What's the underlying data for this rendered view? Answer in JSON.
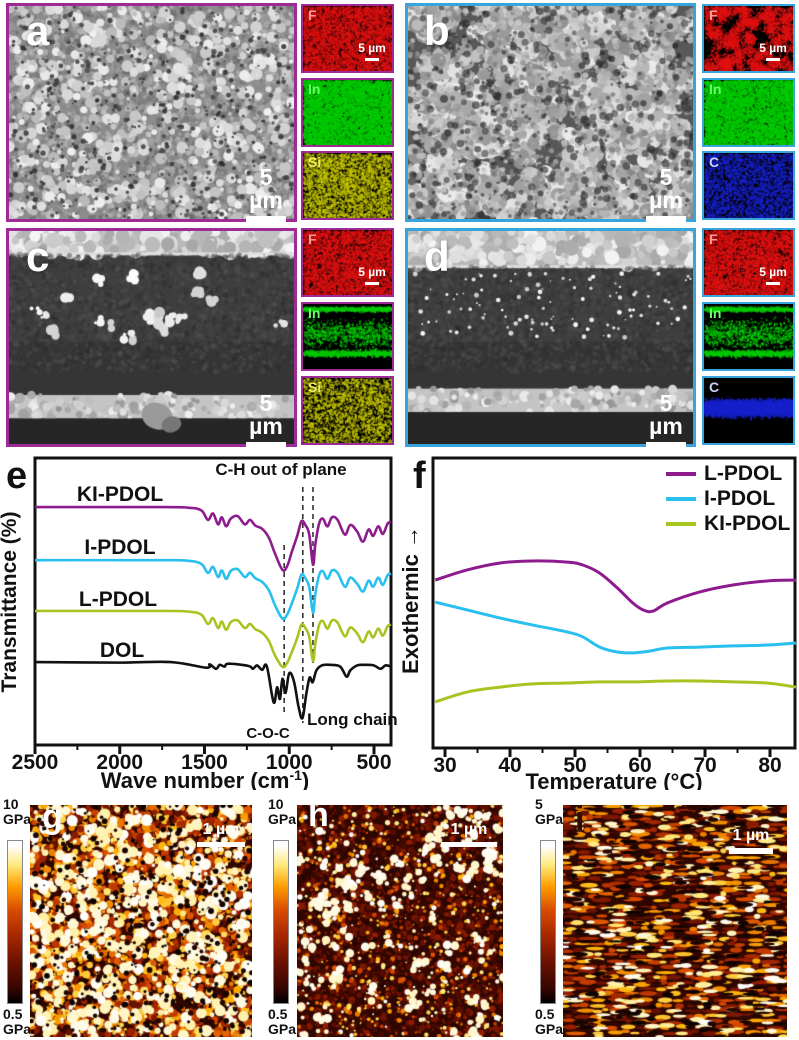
{
  "colors": {
    "purple_border": "#9e2a96",
    "blue_border": "#39a4dc",
    "curve_purple": "#8e1b8e",
    "curve_cyan": "#29bfee",
    "curve_green": "#a6c520",
    "curve_black": "#111111"
  },
  "panels": {
    "a": {
      "label": "a",
      "scale": "5 µm",
      "type": "sem-surface",
      "eds": [
        {
          "element": "F",
          "color": "#e01212",
          "label_color": "#ff9a9a",
          "scale": "5 µm"
        },
        {
          "element": "In",
          "color": "#00bb00",
          "label_color": "#66ff66"
        },
        {
          "element": "Si",
          "color": "#c6c600",
          "label_color": "#eeee66"
        }
      ]
    },
    "b": {
      "label": "b",
      "scale": "5 µm",
      "type": "sem-particles",
      "eds": [
        {
          "element": "F",
          "color": "#e01212",
          "label_color": "#ff9a9a",
          "scale": "5 µm"
        },
        {
          "element": "In",
          "color": "#00bb00",
          "label_color": "#66ff66"
        },
        {
          "element": "C",
          "color": "#1822cc",
          "label_color": "#c8d2ff"
        }
      ]
    },
    "c": {
      "label": "c",
      "scale": "5 µm",
      "type": "sem-cross",
      "eds": [
        {
          "element": "F",
          "color": "#e01212",
          "label_color": "#ff9a9a",
          "scale": "5 µm"
        },
        {
          "element": "In",
          "color": "#00bb00",
          "label_color": "#66ff66",
          "banded": true
        },
        {
          "element": "Si",
          "color": "#c6c600",
          "label_color": "#eeee66"
        }
      ]
    },
    "d": {
      "label": "d",
      "scale": "5 µm",
      "type": "sem-cross",
      "eds": [
        {
          "element": "F",
          "color": "#e01212",
          "label_color": "#ff9a9a",
          "scale": "5 µm"
        },
        {
          "element": "In",
          "color": "#00bb00",
          "label_color": "#66ff66",
          "banded": true
        },
        {
          "element": "C",
          "color": "#1822cc",
          "label_color": "#c8d2ff",
          "midband": true
        }
      ]
    }
  },
  "chart_data": [
    {
      "id": "ftir",
      "panel_label": "e",
      "type": "line",
      "title": "",
      "xlabel": "Wave number (cm⁻¹)",
      "xlabel_parts": [
        "Wave number (cm",
        "-1",
        ")"
      ],
      "ylabel": "Transmittance (%)",
      "x_range": [
        2500,
        400
      ],
      "x_reversed": true,
      "x_ticks": [
        2500,
        2000,
        1500,
        1000,
        500
      ],
      "annotations": {
        "top_label": "C-H out of plane",
        "coc_label": "C-O-C",
        "long_chain_label": "Long chain",
        "dashed_x": [
          1030,
          920,
          860
        ]
      },
      "series": [
        {
          "name": "KI-PDOL",
          "color": "#8e1b8e",
          "baseline": 0.171,
          "amp": 0.223,
          "points": [
            [
              2500,
              1
            ],
            [
              1750,
              1
            ],
            [
              1600,
              0.99
            ],
            [
              1520,
              0.95
            ],
            [
              1480,
              0.8
            ],
            [
              1450,
              0.9
            ],
            [
              1420,
              0.73
            ],
            [
              1398,
              0.84
            ],
            [
              1372,
              0.7
            ],
            [
              1345,
              0.82
            ],
            [
              1305,
              0.86
            ],
            [
              1262,
              0.73
            ],
            [
              1232,
              0.8
            ],
            [
              1200,
              0.71
            ],
            [
              1160,
              0.66
            ],
            [
              1120,
              0.52
            ],
            [
              1085,
              0.28
            ],
            [
              1040,
              0.02
            ],
            [
              1012,
              0.08
            ],
            [
              985,
              0.3
            ],
            [
              952,
              0.56
            ],
            [
              928,
              0.78
            ],
            [
              905,
              0.72
            ],
            [
              882,
              0.57
            ],
            [
              860,
              0.1
            ],
            [
              846,
              0.42
            ],
            [
              824,
              0.74
            ],
            [
              802,
              0.82
            ],
            [
              775,
              0.7
            ],
            [
              748,
              0.84
            ],
            [
              715,
              0.8
            ],
            [
              672,
              0.57
            ],
            [
              640,
              0.72
            ],
            [
              600,
              0.62
            ],
            [
              565,
              0.46
            ],
            [
              532,
              0.65
            ],
            [
              505,
              0.55
            ],
            [
              475,
              0.7
            ],
            [
              448,
              0.58
            ],
            [
              420,
              0.74
            ],
            [
              400,
              0.77
            ]
          ]
        },
        {
          "name": "I-PDOL",
          "color": "#29bfee",
          "baseline": 0.356,
          "amp": 0.21,
          "points": [
            [
              2500,
              1
            ],
            [
              1750,
              1
            ],
            [
              1600,
              0.99
            ],
            [
              1520,
              0.94
            ],
            [
              1480,
              0.79
            ],
            [
              1450,
              0.89
            ],
            [
              1420,
              0.72
            ],
            [
              1398,
              0.83
            ],
            [
              1372,
              0.69
            ],
            [
              1345,
              0.82
            ],
            [
              1305,
              0.85
            ],
            [
              1262,
              0.72
            ],
            [
              1232,
              0.79
            ],
            [
              1200,
              0.7
            ],
            [
              1160,
              0.64
            ],
            [
              1120,
              0.5
            ],
            [
              1085,
              0.26
            ],
            [
              1040,
              0.03
            ],
            [
              1012,
              0.1
            ],
            [
              985,
              0.28
            ],
            [
              952,
              0.54
            ],
            [
              928,
              0.76
            ],
            [
              905,
              0.7
            ],
            [
              882,
              0.55
            ],
            [
              860,
              0.13
            ],
            [
              846,
              0.44
            ],
            [
              824,
              0.75
            ],
            [
              802,
              0.82
            ],
            [
              775,
              0.69
            ],
            [
              748,
              0.83
            ],
            [
              715,
              0.79
            ],
            [
              672,
              0.56
            ],
            [
              640,
              0.71
            ],
            [
              600,
              0.61
            ],
            [
              565,
              0.48
            ],
            [
              532,
              0.66
            ],
            [
              505,
              0.56
            ],
            [
              475,
              0.71
            ],
            [
              448,
              0.59
            ],
            [
              420,
              0.75
            ],
            [
              400,
              0.78
            ]
          ]
        },
        {
          "name": "L-PDOL",
          "color": "#a6c520",
          "baseline": 0.533,
          "amp": 0.205,
          "points": [
            [
              2500,
              1
            ],
            [
              1750,
              1
            ],
            [
              1600,
              0.99
            ],
            [
              1520,
              0.94
            ],
            [
              1480,
              0.78
            ],
            [
              1450,
              0.88
            ],
            [
              1420,
              0.71
            ],
            [
              1398,
              0.82
            ],
            [
              1372,
              0.68
            ],
            [
              1345,
              0.81
            ],
            [
              1305,
              0.84
            ],
            [
              1262,
              0.71
            ],
            [
              1232,
              0.78
            ],
            [
              1200,
              0.69
            ],
            [
              1160,
              0.63
            ],
            [
              1120,
              0.49
            ],
            [
              1085,
              0.25
            ],
            [
              1040,
              0.05
            ],
            [
              1012,
              0.12
            ],
            [
              985,
              0.3
            ],
            [
              952,
              0.55
            ],
            [
              928,
              0.77
            ],
            [
              905,
              0.71
            ],
            [
              882,
              0.56
            ],
            [
              860,
              0.15
            ],
            [
              846,
              0.45
            ],
            [
              824,
              0.76
            ],
            [
              802,
              0.83
            ],
            [
              775,
              0.7
            ],
            [
              748,
              0.84
            ],
            [
              715,
              0.8
            ],
            [
              672,
              0.57
            ],
            [
              640,
              0.72
            ],
            [
              600,
              0.62
            ],
            [
              565,
              0.47
            ],
            [
              532,
              0.65
            ],
            [
              505,
              0.55
            ],
            [
              475,
              0.7
            ],
            [
              448,
              0.58
            ],
            [
              420,
              0.74
            ],
            [
              400,
              0.77
            ]
          ]
        },
        {
          "name": "DOL",
          "color": "#111111",
          "baseline": 0.711,
          "amp": 0.195,
          "points": [
            [
              2500,
              1
            ],
            [
              2000,
              0.99
            ],
            [
              1700,
              1
            ],
            [
              1490,
              0.9
            ],
            [
              1470,
              0.96
            ],
            [
              1432,
              0.88
            ],
            [
              1410,
              0.95
            ],
            [
              1382,
              0.92
            ],
            [
              1358,
              0.97
            ],
            [
              1240,
              0.93
            ],
            [
              1215,
              0.88
            ],
            [
              1190,
              0.94
            ],
            [
              1160,
              0.86
            ],
            [
              1132,
              0.92
            ],
            [
              1092,
              0.28
            ],
            [
              1072,
              0.55
            ],
            [
              1055,
              0.34
            ],
            [
              1040,
              0.7
            ],
            [
              1022,
              0.45
            ],
            [
              1000,
              0.8
            ],
            [
              972,
              0.65
            ],
            [
              945,
              0.2
            ],
            [
              922,
              0.0
            ],
            [
              900,
              0.42
            ],
            [
              880,
              0.72
            ],
            [
              862,
              0.64
            ],
            [
              840,
              0.85
            ],
            [
              808,
              0.94
            ],
            [
              760,
              0.95
            ],
            [
              700,
              0.92
            ],
            [
              662,
              0.74
            ],
            [
              640,
              0.85
            ],
            [
              600,
              0.94
            ],
            [
              552,
              0.95
            ],
            [
              502,
              0.94
            ],
            [
              462,
              0.88
            ],
            [
              432,
              0.94
            ],
            [
              400,
              0.92
            ]
          ]
        }
      ]
    },
    {
      "id": "dsc",
      "panel_label": "f",
      "type": "line",
      "title": "",
      "xlabel": "Temperature (°C)",
      "ylabel": "Exothermic →",
      "x_range": [
        28,
        84
      ],
      "x_ticks": [
        30,
        40,
        50,
        60,
        70,
        80
      ],
      "legend_position": "top-right",
      "series": [
        {
          "name": "L-PDOL",
          "color": "#8e1b8e",
          "points": [
            [
              28.5,
              0.579
            ],
            [
              33.4,
              0.614
            ],
            [
              38.5,
              0.638
            ],
            [
              43.5,
              0.645
            ],
            [
              48.8,
              0.641
            ],
            [
              51.2,
              0.631
            ],
            [
              53.8,
              0.603
            ],
            [
              56.5,
              0.552
            ],
            [
              58.9,
              0.5
            ],
            [
              60.5,
              0.476
            ],
            [
              62.0,
              0.472
            ],
            [
              64.2,
              0.5
            ],
            [
              69.2,
              0.538
            ],
            [
              74.3,
              0.562
            ],
            [
              79.5,
              0.576
            ],
            [
              84,
              0.579
            ]
          ]
        },
        {
          "name": "I-PDOL",
          "color": "#29bfee",
          "points": [
            [
              28.5,
              0.503
            ],
            [
              33.4,
              0.476
            ],
            [
              38.5,
              0.448
            ],
            [
              43.5,
              0.424
            ],
            [
              48.8,
              0.4
            ],
            [
              51.2,
              0.383
            ],
            [
              53.8,
              0.348
            ],
            [
              56.5,
              0.331
            ],
            [
              58.9,
              0.328
            ],
            [
              61.5,
              0.334
            ],
            [
              64.2,
              0.345
            ],
            [
              69.2,
              0.348
            ],
            [
              74.3,
              0.352
            ],
            [
              79.5,
              0.355
            ],
            [
              84,
              0.362
            ]
          ]
        },
        {
          "name": "KI-PDOL",
          "color": "#a6c520",
          "points": [
            [
              28.5,
              0.159
            ],
            [
              33.4,
              0.193
            ],
            [
              38.5,
              0.21
            ],
            [
              43.5,
              0.221
            ],
            [
              48.8,
              0.224
            ],
            [
              53.8,
              0.228
            ],
            [
              58.9,
              0.228
            ],
            [
              64.2,
              0.231
            ],
            [
              69.2,
              0.231
            ],
            [
              74.3,
              0.228
            ],
            [
              79.5,
              0.224
            ],
            [
              84,
              0.21
            ]
          ]
        }
      ]
    }
  ],
  "afm": {
    "panels": [
      {
        "label": "g",
        "cbar_top": "10",
        "cbar_top_unit": "GPa",
        "cbar_bottom": "0.5",
        "cbar_bottom_unit": "GPa",
        "scale": "1 µm",
        "style": "dense",
        "label_color": "#ffffff"
      },
      {
        "label": "h",
        "cbar_top": "10",
        "cbar_top_unit": "GPa",
        "cbar_bottom": "0.5",
        "cbar_bottom_unit": "GPa",
        "scale": "1 µm",
        "style": "sparse",
        "label_color": "#ffffff"
      },
      {
        "label": "i",
        "cbar_top": "5",
        "cbar_top_unit": "GPa",
        "cbar_bottom": "0.5",
        "cbar_bottom_unit": "GPa",
        "scale": "1 µm",
        "style": "stripes",
        "label_color": "#2a1000"
      }
    ]
  }
}
